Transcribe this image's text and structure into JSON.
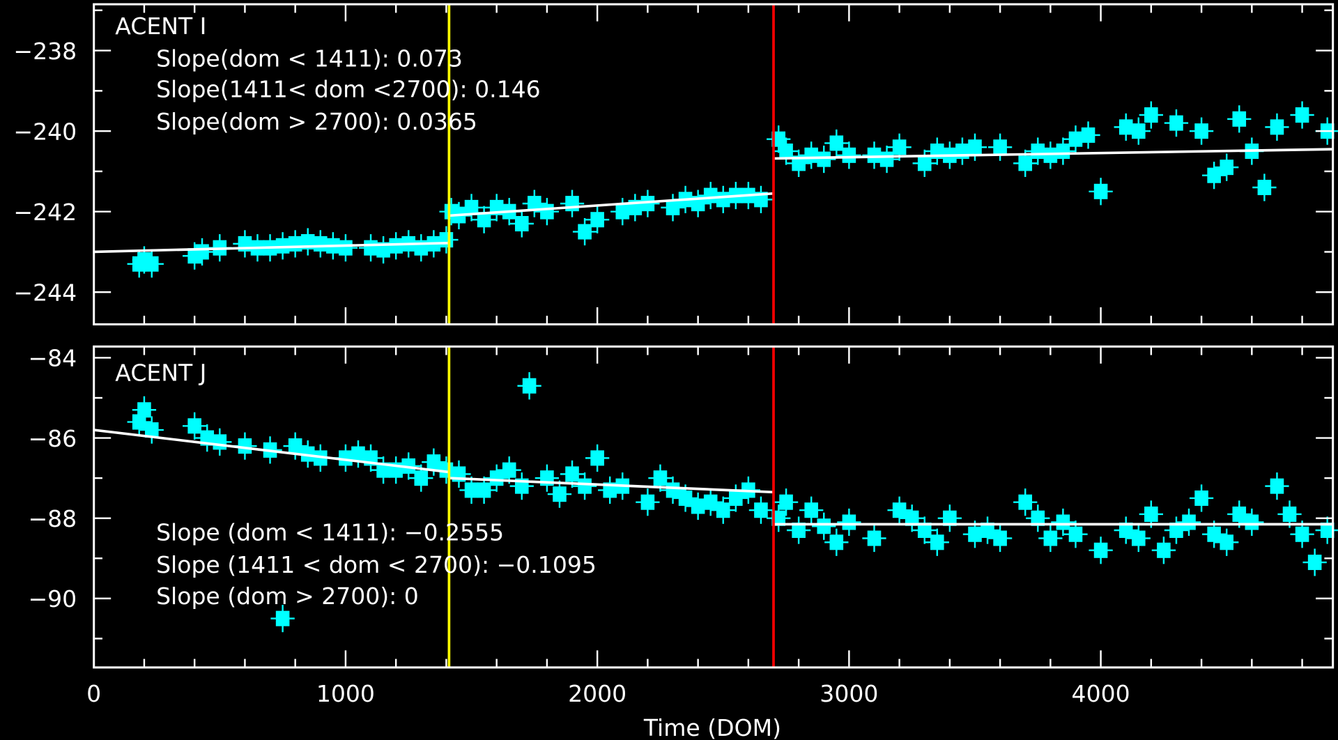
{
  "chart_data": [
    {
      "type": "scatter",
      "title": "ACENT I",
      "xlabel": "",
      "ylabel": "",
      "xlim": [
        0,
        4922
      ],
      "ylim": [
        -244.8,
        -236.85
      ],
      "yticks": [
        -238,
        -240,
        -242,
        -244
      ],
      "ytick_labels": [
        "−238",
        "−240",
        "−242",
        "−244"
      ],
      "annotations": [
        "Slope(dom < 1411): 0.073",
        "Slope(1411< dom <2700): 0.146",
        "Slope(dom > 2700): 0.0365"
      ],
      "fit_segments": [
        {
          "x": [
            0,
            1411
          ],
          "y": [
            -243.0,
            -242.78
          ]
        },
        {
          "x": [
            1411,
            2700
          ],
          "y": [
            -242.1,
            -241.55
          ]
        },
        {
          "x": [
            2700,
            4922
          ],
          "y": [
            -240.68,
            -240.45
          ]
        }
      ],
      "points": [
        [
          180,
          -243.3
        ],
        [
          200,
          -243.2
        ],
        [
          230,
          -243.3
        ],
        [
          400,
          -243.1
        ],
        [
          430,
          -243.0
        ],
        [
          500,
          -242.9
        ],
        [
          600,
          -242.8
        ],
        [
          650,
          -242.9
        ],
        [
          700,
          -242.9
        ],
        [
          750,
          -242.85
        ],
        [
          800,
          -242.8
        ],
        [
          850,
          -242.75
        ],
        [
          900,
          -242.8
        ],
        [
          950,
          -242.85
        ],
        [
          1000,
          -242.9
        ],
        [
          1100,
          -242.9
        ],
        [
          1150,
          -242.95
        ],
        [
          1200,
          -242.85
        ],
        [
          1250,
          -242.8
        ],
        [
          1300,
          -242.9
        ],
        [
          1350,
          -242.8
        ],
        [
          1400,
          -242.7
        ],
        [
          1420,
          -242.0
        ],
        [
          1450,
          -242.1
        ],
        [
          1500,
          -241.9
        ],
        [
          1550,
          -242.2
        ],
        [
          1600,
          -241.9
        ],
        [
          1650,
          -242.0
        ],
        [
          1700,
          -242.3
        ],
        [
          1750,
          -241.8
        ],
        [
          1800,
          -242.0
        ],
        [
          1900,
          -241.8
        ],
        [
          1950,
          -242.5
        ],
        [
          2000,
          -242.2
        ],
        [
          2100,
          -242.0
        ],
        [
          2150,
          -241.9
        ],
        [
          2200,
          -241.8
        ],
        [
          2300,
          -241.9
        ],
        [
          2350,
          -241.7
        ],
        [
          2400,
          -241.8
        ],
        [
          2450,
          -241.6
        ],
        [
          2500,
          -241.7
        ],
        [
          2550,
          -241.6
        ],
        [
          2600,
          -241.6
        ],
        [
          2650,
          -241.7
        ],
        [
          2720,
          -240.2
        ],
        [
          2750,
          -240.5
        ],
        [
          2800,
          -240.8
        ],
        [
          2850,
          -240.6
        ],
        [
          2900,
          -240.7
        ],
        [
          2950,
          -240.3
        ],
        [
          3000,
          -240.6
        ],
        [
          3100,
          -240.6
        ],
        [
          3150,
          -240.7
        ],
        [
          3200,
          -240.4
        ],
        [
          3300,
          -240.8
        ],
        [
          3350,
          -240.5
        ],
        [
          3400,
          -240.6
        ],
        [
          3450,
          -240.5
        ],
        [
          3500,
          -240.4
        ],
        [
          3600,
          -240.4
        ],
        [
          3700,
          -240.8
        ],
        [
          3750,
          -240.5
        ],
        [
          3800,
          -240.6
        ],
        [
          3850,
          -240.5
        ],
        [
          3900,
          -240.2
        ],
        [
          3950,
          -240.1
        ],
        [
          4000,
          -241.5
        ],
        [
          4100,
          -239.9
        ],
        [
          4150,
          -240.0
        ],
        [
          4200,
          -239.6
        ],
        [
          4300,
          -239.8
        ],
        [
          4400,
          -240.0
        ],
        [
          4450,
          -241.1
        ],
        [
          4500,
          -240.9
        ],
        [
          4550,
          -239.7
        ],
        [
          4600,
          -240.5
        ],
        [
          4650,
          -241.4
        ],
        [
          4700,
          -239.9
        ],
        [
          4800,
          -239.6
        ],
        [
          4900,
          -240.0
        ]
      ]
    },
    {
      "type": "scatter",
      "title": "ACENT J",
      "xlabel": "Time (DOM)",
      "ylabel": "",
      "xlim": [
        0,
        4922
      ],
      "ylim": [
        -91.72,
        -83.72
      ],
      "xticks": [
        0,
        1000,
        2000,
        3000,
        4000
      ],
      "xtick_labels": [
        "0",
        "1000",
        "2000",
        "3000",
        "4000"
      ],
      "yticks": [
        -84,
        -86,
        -88,
        -90
      ],
      "ytick_labels": [
        "−84",
        "−86",
        "−88",
        "−90"
      ],
      "annotations": [
        "Slope (dom < 1411): −0.2555",
        "Slope (1411 < dom < 2700): −0.1095",
        "Slope (dom > 2700): 0"
      ],
      "fit_segments": [
        {
          "x": [
            0,
            1411
          ],
          "y": [
            -85.8,
            -86.85
          ]
        },
        {
          "x": [
            1411,
            2700
          ],
          "y": [
            -87.0,
            -87.35
          ]
        },
        {
          "x": [
            2700,
            4922
          ],
          "y": [
            -88.15,
            -88.15
          ]
        }
      ],
      "points": [
        [
          180,
          -85.6
        ],
        [
          200,
          -85.3
        ],
        [
          230,
          -85.8
        ],
        [
          400,
          -85.7
        ],
        [
          450,
          -86.0
        ],
        [
          500,
          -86.1
        ],
        [
          600,
          -86.2
        ],
        [
          700,
          -86.3
        ],
        [
          750,
          -90.5
        ],
        [
          800,
          -86.2
        ],
        [
          850,
          -86.4
        ],
        [
          900,
          -86.5
        ],
        [
          1000,
          -86.5
        ],
        [
          1050,
          -86.4
        ],
        [
          1100,
          -86.5
        ],
        [
          1150,
          -86.8
        ],
        [
          1200,
          -86.8
        ],
        [
          1250,
          -86.7
        ],
        [
          1300,
          -87.0
        ],
        [
          1350,
          -86.6
        ],
        [
          1400,
          -86.8
        ],
        [
          1450,
          -86.9
        ],
        [
          1500,
          -87.3
        ],
        [
          1550,
          -87.3
        ],
        [
          1600,
          -87.0
        ],
        [
          1650,
          -86.8
        ],
        [
          1700,
          -87.2
        ],
        [
          1730,
          -84.7
        ],
        [
          1800,
          -87.0
        ],
        [
          1850,
          -87.4
        ],
        [
          1900,
          -86.9
        ],
        [
          1950,
          -87.2
        ],
        [
          2000,
          -86.5
        ],
        [
          2050,
          -87.3
        ],
        [
          2100,
          -87.2
        ],
        [
          2200,
          -87.6
        ],
        [
          2250,
          -87.0
        ],
        [
          2300,
          -87.3
        ],
        [
          2350,
          -87.5
        ],
        [
          2400,
          -87.7
        ],
        [
          2450,
          -87.6
        ],
        [
          2500,
          -87.8
        ],
        [
          2550,
          -87.5
        ],
        [
          2600,
          -87.3
        ],
        [
          2650,
          -87.8
        ],
        [
          2720,
          -88.0
        ],
        [
          2750,
          -87.6
        ],
        [
          2800,
          -88.3
        ],
        [
          2850,
          -87.8
        ],
        [
          2900,
          -88.2
        ],
        [
          2950,
          -88.6
        ],
        [
          3000,
          -88.1
        ],
        [
          3100,
          -88.5
        ],
        [
          3200,
          -87.8
        ],
        [
          3250,
          -88.0
        ],
        [
          3300,
          -88.3
        ],
        [
          3350,
          -88.6
        ],
        [
          3400,
          -88.0
        ],
        [
          3500,
          -88.4
        ],
        [
          3550,
          -88.3
        ],
        [
          3600,
          -88.5
        ],
        [
          3700,
          -87.6
        ],
        [
          3750,
          -88.0
        ],
        [
          3800,
          -88.5
        ],
        [
          3850,
          -88.1
        ],
        [
          3900,
          -88.4
        ],
        [
          4000,
          -88.8
        ],
        [
          4100,
          -88.3
        ],
        [
          4150,
          -88.5
        ],
        [
          4200,
          -87.9
        ],
        [
          4250,
          -88.8
        ],
        [
          4300,
          -88.3
        ],
        [
          4350,
          -88.1
        ],
        [
          4400,
          -87.5
        ],
        [
          4450,
          -88.4
        ],
        [
          4500,
          -88.6
        ],
        [
          4550,
          -87.9
        ],
        [
          4600,
          -88.1
        ],
        [
          4700,
          -87.2
        ],
        [
          4750,
          -87.9
        ],
        [
          4800,
          -88.4
        ],
        [
          4850,
          -89.1
        ],
        [
          4900,
          -88.3
        ]
      ]
    }
  ],
  "vlines": [
    {
      "x": 1411,
      "color": "#ffff00"
    },
    {
      "x": 2700,
      "color": "#ff0000"
    }
  ],
  "colors": {
    "points": "#00ffff",
    "fit": "#ffffff",
    "axes": "#ffffff",
    "background": "#000000"
  }
}
